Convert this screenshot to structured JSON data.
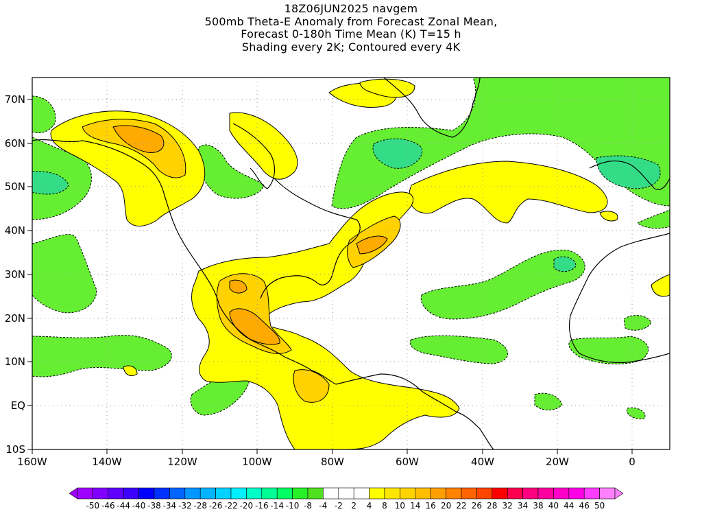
{
  "header": {
    "line1": "18Z06JUN2025 navgem",
    "line2": "500mb Theta-E Anomaly from Forecast Zonal Mean,",
    "line3": "Forecast 0-180h Time Mean (K) T=15 h",
    "line4": "Shading every 2K; Contoured every 4K"
  },
  "axes": {
    "lat_labels": [
      "70N",
      "60N",
      "50N",
      "40N",
      "30N",
      "20N",
      "10N",
      "EQ",
      "10S"
    ],
    "lon_labels": [
      "160W",
      "140W",
      "120W",
      "100W",
      "80W",
      "60W",
      "40W",
      "20W",
      "0"
    ],
    "lat_range": [
      -10,
      75
    ],
    "lon_range": [
      -160,
      10
    ]
  },
  "colorbar": {
    "labels": [
      "-50",
      "-46",
      "-44",
      "-40",
      "-38",
      "-34",
      "-32",
      "-28",
      "-26",
      "-22",
      "-20",
      "-16",
      "-14",
      "-10",
      "-8",
      "-4",
      "-2",
      "2",
      "4",
      "8",
      "10",
      "14",
      "16",
      "20",
      "22",
      "26",
      "28",
      "32",
      "34",
      "38",
      "40",
      "44",
      "46",
      "50"
    ],
    "colors": [
      "#a000ff",
      "#8000ff",
      "#6000ff",
      "#3c00ff",
      "#0000ff",
      "#0032ff",
      "#0064ff",
      "#0096ff",
      "#00b4ff",
      "#00d2ff",
      "#00f0ff",
      "#00ffc8",
      "#00ff96",
      "#00ff64",
      "#28f028",
      "#50e01e",
      "#ffffff",
      "#ffffff",
      "#ffffff",
      "#ffff00",
      "#ffe600",
      "#ffd200",
      "#ffbe00",
      "#ffa000",
      "#ff8200",
      "#ff6400",
      "#ff4600",
      "#ff0000",
      "#ff0050",
      "#ff0080",
      "#ff00a0",
      "#ff00c8",
      "#ff00e6",
      "#ff3cff",
      "#ff80ff"
    ]
  },
  "style": {
    "positive_light": "#ffff00",
    "positive_mid": "#ffd200",
    "positive_strong": "#ffaa00",
    "negative_light": "#66ee33",
    "negative_mid": "#33dd88"
  }
}
